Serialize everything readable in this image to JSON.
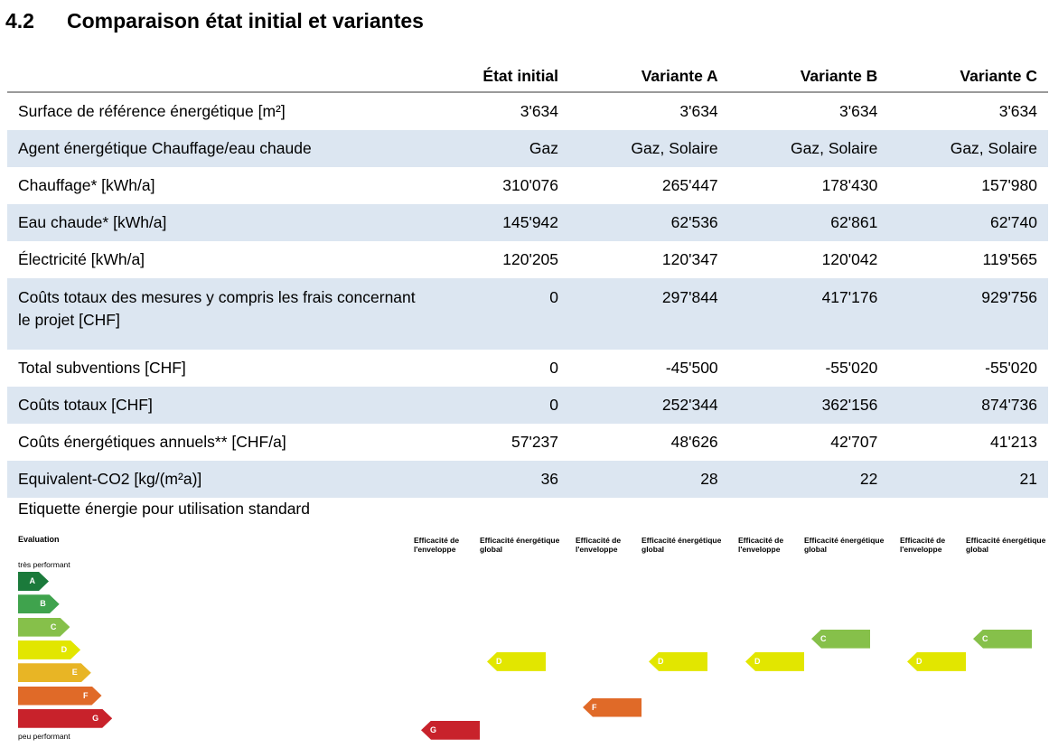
{
  "section": {
    "number": "4.2",
    "title": "Comparaison état initial et variantes"
  },
  "table": {
    "header_empty": "",
    "columns": [
      "État initial",
      "Variante A",
      "Variante B",
      "Variante C"
    ],
    "rows": [
      {
        "label": "Surface de référence énergétique [m²]",
        "values": [
          "3'634",
          "3'634",
          "3'634",
          "3'634"
        ]
      },
      {
        "label": "Agent énergétique Chauffage/eau chaude",
        "values": [
          "Gaz",
          "Gaz, Solaire",
          "Gaz, Solaire",
          "Gaz, Solaire"
        ]
      },
      {
        "label": "Chauffage* [kWh/a]",
        "values": [
          "310'076",
          "265'447",
          "178'430",
          "157'980"
        ]
      },
      {
        "label": "Eau chaude* [kWh/a]",
        "values": [
          "145'942",
          "62'536",
          "62'861",
          "62'740"
        ]
      },
      {
        "label": "Électricité [kWh/a]",
        "values": [
          "120'205",
          "120'347",
          "120'042",
          "119'565"
        ]
      },
      {
        "label": "Coûts totaux des mesures y compris les frais concernant le projet [CHF]",
        "values": [
          "0",
          "297'844",
          "417'176",
          "929'756"
        ]
      },
      {
        "label": "Total subventions [CHF]",
        "values": [
          "0",
          "-45'500",
          "-55'020",
          "-55'020"
        ]
      },
      {
        "label": "Coûts totaux [CHF]",
        "values": [
          "0",
          "252'344",
          "362'156",
          "874'736"
        ]
      },
      {
        "label": "Coûts énergétiques annuels** [CHF/a]",
        "values": [
          "57'237",
          "48'626",
          "42'707",
          "41'213"
        ]
      },
      {
        "label": "Equivalent-CO2 [kg/(m²a)]",
        "values": [
          "36",
          "28",
          "22",
          "21"
        ]
      }
    ]
  },
  "energy_label": {
    "title": "Etiquette énergie pour utilisation standard",
    "evaluation": "Evaluation",
    "top": "très performant",
    "bottom": "peu performant",
    "classes": [
      "A",
      "B",
      "C",
      "D",
      "E",
      "F",
      "G"
    ],
    "class_colors": [
      "#1b7a3b",
      "#3fa34d",
      "#86c04a",
      "#e2e600",
      "#e8b525",
      "#e06a28",
      "#c8222b"
    ],
    "col_envelope": "Efficacité de l'enveloppe",
    "col_global": "Efficacité énergétique global",
    "ratings": [
      {
        "envelope": "G",
        "global": "D"
      },
      {
        "envelope": "F",
        "global": "D"
      },
      {
        "envelope": "D",
        "global": "C"
      },
      {
        "envelope": "D",
        "global": "C"
      }
    ]
  }
}
